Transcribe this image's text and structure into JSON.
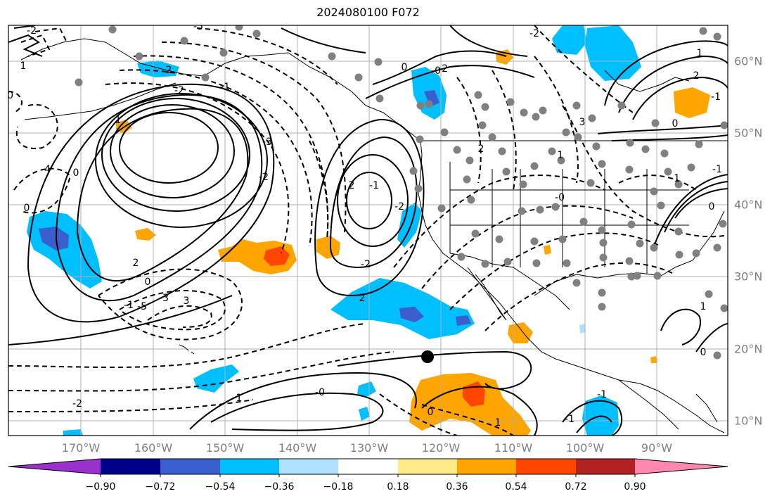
{
  "title": "2024080100 F072",
  "map": {
    "projection": "lat-lon",
    "region": "Northeast Pacific / North America",
    "lon_labels": [
      "170°W",
      "160°W",
      "150°W",
      "140°W",
      "130°W",
      "120°W",
      "110°W",
      "100°W",
      "90°W"
    ],
    "lat_labels": [
      "60°N",
      "50°N",
      "40°N",
      "30°N",
      "20°N",
      "10°N"
    ],
    "gridlines": true,
    "contour_labels": [
      "-5",
      "-2",
      "2",
      "-2",
      "1",
      "-1",
      "0",
      "-4",
      "0",
      "1",
      "-3",
      "-2",
      "2",
      "0",
      "-1",
      "3",
      "-5",
      "-3",
      "2",
      "-1",
      "-2",
      "-2",
      "2",
      "0",
      "-0",
      "-2",
      "-2",
      "-2",
      "1",
      "-0",
      "0",
      "1",
      "2",
      "3",
      "1",
      "-0",
      "0",
      "1",
      "0",
      "-1",
      "-1",
      "1",
      "2",
      "-1",
      "0",
      "-1",
      "-1",
      "-0"
    ]
  },
  "colorbar": {
    "ticks": [
      "−0.90",
      "−0.72",
      "−0.54",
      "−0.36",
      "−0.18",
      "0.18",
      "0.36",
      "0.54",
      "0.72",
      "0.90"
    ],
    "colors": [
      "#9932cc",
      "#00008b",
      "#3a5fcd",
      "#00bfff",
      "#b0e0ff",
      "#ffffff",
      "#ffeb8a",
      "#ffa500",
      "#ff4500",
      "#b22222",
      "#ff88b0"
    ]
  },
  "colors": {
    "station_dot": "#808080",
    "marker": "#000000",
    "contour": "#000000",
    "grid": "#b0b0b0",
    "label": "#808080"
  }
}
